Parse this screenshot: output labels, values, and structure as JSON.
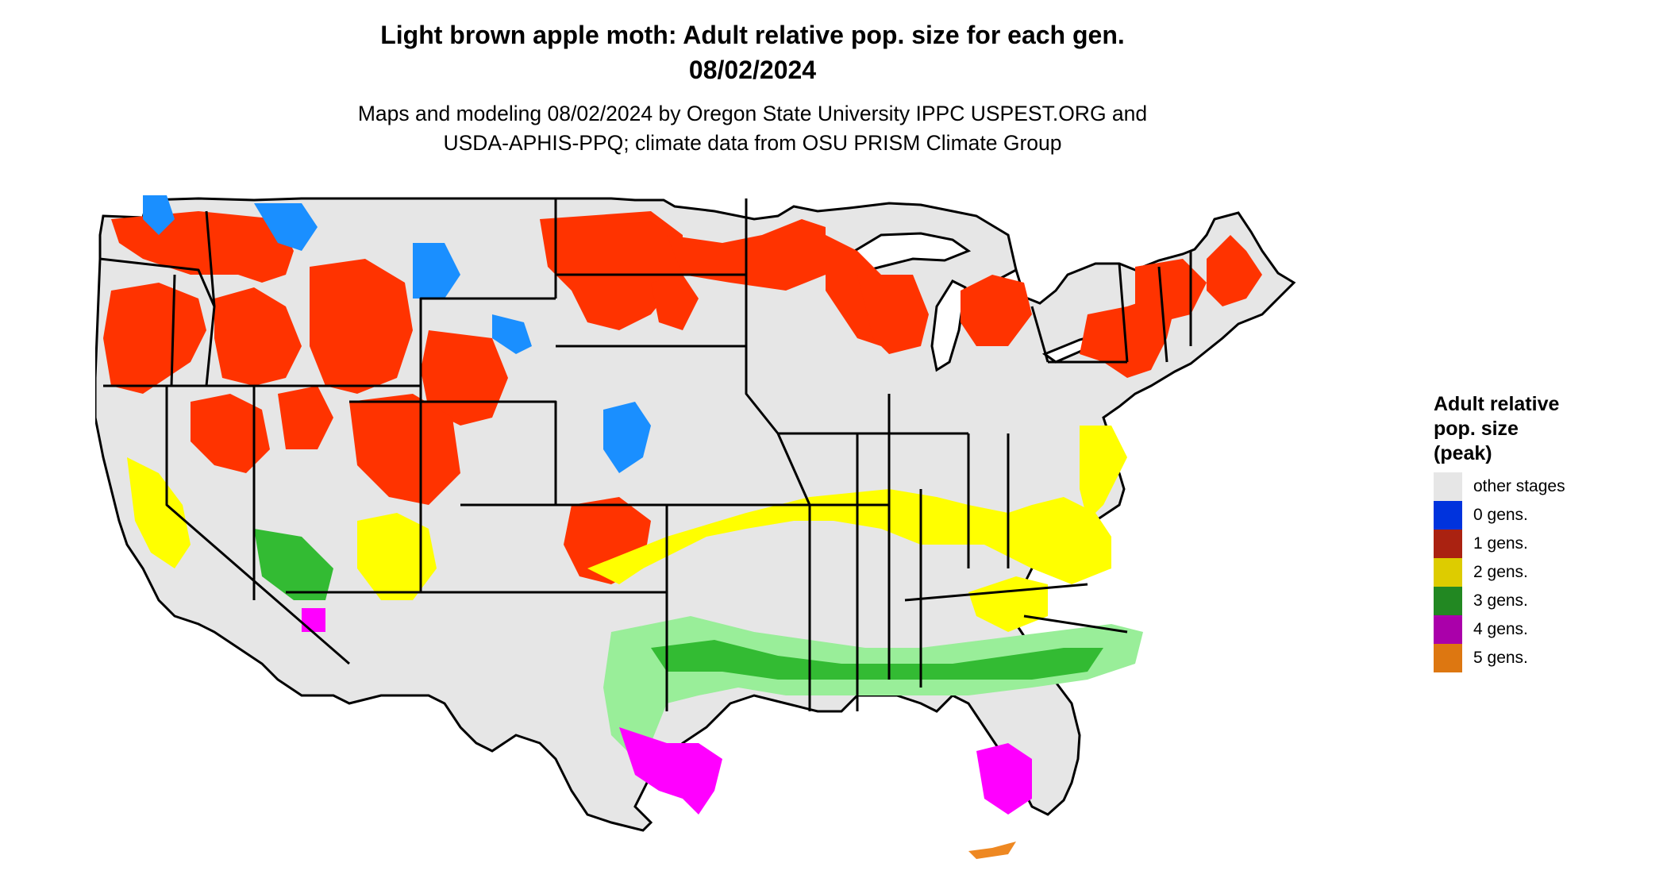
{
  "header": {
    "title_line1": "Light brown apple moth: Adult relative pop. size for each gen.",
    "title_line2": "08/02/2024",
    "subtitle_line1": "Maps and modeling 08/02/2024 by Oregon State University IPPC USPEST.ORG and",
    "subtitle_line2": "USDA-APHIS-PPQ; climate data from OSU PRISM Climate Group"
  },
  "legend": {
    "title_line1": "Adult relative",
    "title_line2": "pop. size",
    "title_line3": "(peak)",
    "items": [
      {
        "label": "other stages",
        "color": "#e6e6e6"
      },
      {
        "label": "0 gens.",
        "color": "#0033dd"
      },
      {
        "label": "1 gens.",
        "color": "#aa2211"
      },
      {
        "label": "2 gens.",
        "color": "#ddcc00"
      },
      {
        "label": "3 gens.",
        "color": "#228822"
      },
      {
        "label": "4 gens.",
        "color": "#aa00aa"
      },
      {
        "label": "5 gens.",
        "color": "#dd7711"
      }
    ]
  },
  "map": {
    "region": "contiguous-united-states",
    "background_color": "#e6e6e6",
    "border_color": "#000000",
    "fill_colors": {
      "zero_gens": "#1a8fff",
      "one_gen": "#ff3300",
      "one_gen_dark": "#cc2200",
      "two_gens": "#ffff00",
      "three_gens": "#33bb33",
      "three_gens_light": "#99ee99",
      "four_gens": "#ff00ff",
      "five_gens": "#ee8822"
    }
  }
}
